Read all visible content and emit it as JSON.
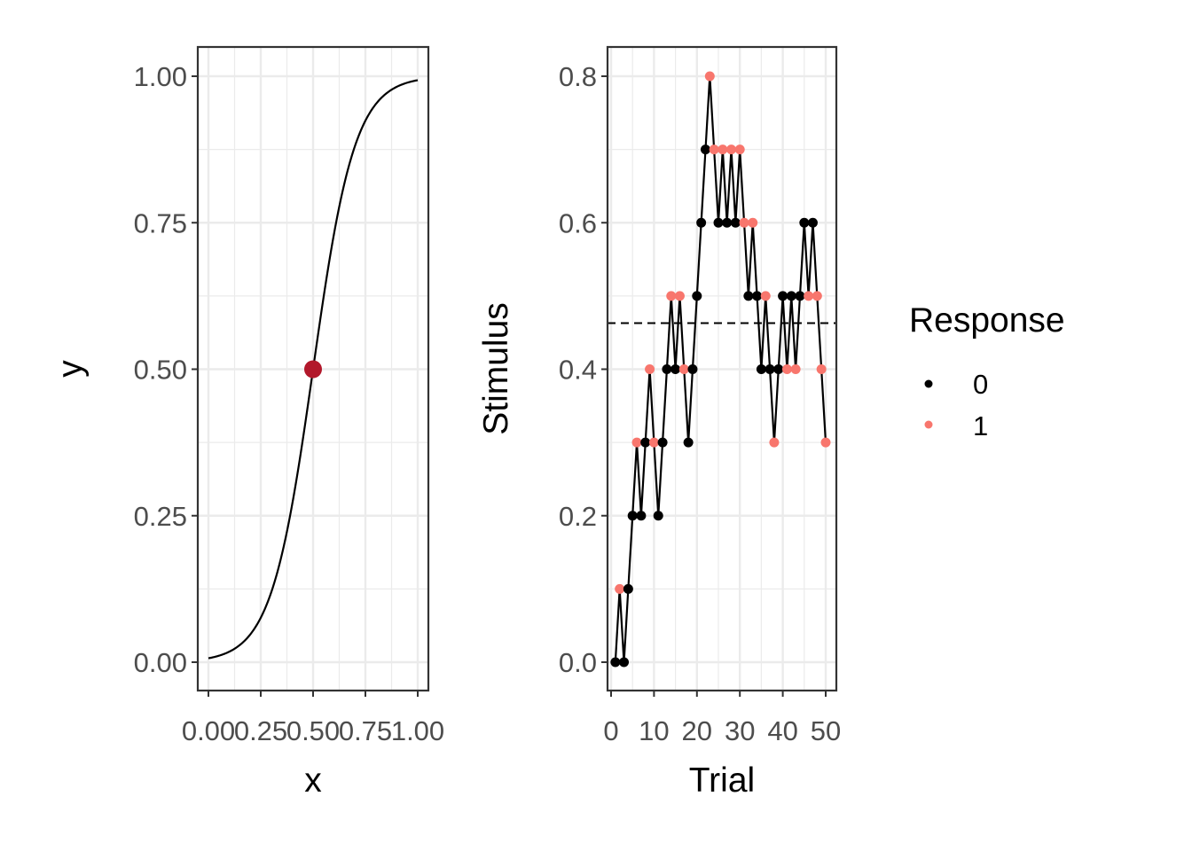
{
  "chart_data": [
    {
      "type": "line",
      "xlabel": "x",
      "ylabel": "y",
      "xlim": [
        0,
        1
      ],
      "ylim": [
        0,
        1
      ],
      "x_ticks": [
        "0.00",
        "0.25",
        "0.50",
        "0.75",
        "1.00"
      ],
      "y_ticks": [
        "0.00",
        "0.25",
        "0.50",
        "0.75",
        "1.00"
      ],
      "grid": true,
      "curve": {
        "kind": "logistic",
        "midpoint": 0.5,
        "slope": 10,
        "x_range": [
          0,
          1
        ],
        "color": "#000000"
      },
      "point": {
        "x": 0.5,
        "y": 0.5,
        "color": "#B2182B"
      }
    },
    {
      "type": "line",
      "xlabel": "Trial",
      "ylabel": "Stimulus",
      "xlim": [
        0,
        50
      ],
      "ylim": [
        0,
        0.8
      ],
      "x_ticks": [
        "0",
        "10",
        "20",
        "30",
        "40",
        "50"
      ],
      "y_ticks": [
        "0.0",
        "0.2",
        "0.4",
        "0.6",
        "0.8"
      ],
      "grid": true,
      "reference_line": {
        "y": 0.463,
        "style": "dashed",
        "color": "#000000"
      },
      "series": [
        {
          "x": [
            1,
            2,
            3,
            4,
            5,
            6,
            7,
            8,
            9,
            10,
            11,
            12,
            13,
            14,
            15,
            16,
            17,
            18,
            19,
            20,
            21,
            22,
            23,
            24,
            25,
            26,
            27,
            28,
            29,
            30,
            31,
            32,
            33,
            34,
            35,
            36,
            37,
            38,
            39,
            40,
            41,
            42,
            43,
            44,
            45,
            46,
            47,
            48,
            49,
            50
          ],
          "values": [
            0.0,
            0.1,
            0.0,
            0.1,
            0.2,
            0.3,
            0.2,
            0.3,
            0.4,
            0.3,
            0.2,
            0.3,
            0.4,
            0.5,
            0.4,
            0.5,
            0.4,
            0.3,
            0.4,
            0.5,
            0.6,
            0.7,
            0.8,
            0.7,
            0.6,
            0.7,
            0.6,
            0.7,
            0.6,
            0.7,
            0.6,
            0.5,
            0.6,
            0.5,
            0.4,
            0.5,
            0.4,
            0.3,
            0.4,
            0.5,
            0.4,
            0.5,
            0.4,
            0.5,
            0.6,
            0.5,
            0.6,
            0.5,
            0.4,
            0.3
          ],
          "response": [
            0,
            1,
            0,
            0,
            0,
            1,
            0,
            0,
            1,
            1,
            0,
            0,
            0,
            1,
            0,
            1,
            1,
            0,
            0,
            0,
            0,
            0,
            1,
            1,
            0,
            1,
            0,
            1,
            0,
            1,
            1,
            0,
            1,
            0,
            0,
            1,
            0,
            1,
            0,
            0,
            1,
            0,
            1,
            0,
            0,
            1,
            0,
            1,
            1,
            1
          ]
        }
      ],
      "legend": {
        "title": "Response",
        "position": "right",
        "entries": [
          {
            "label": "0",
            "color": "#000000"
          },
          {
            "label": "1",
            "color": "#F8766D"
          }
        ]
      }
    }
  ]
}
